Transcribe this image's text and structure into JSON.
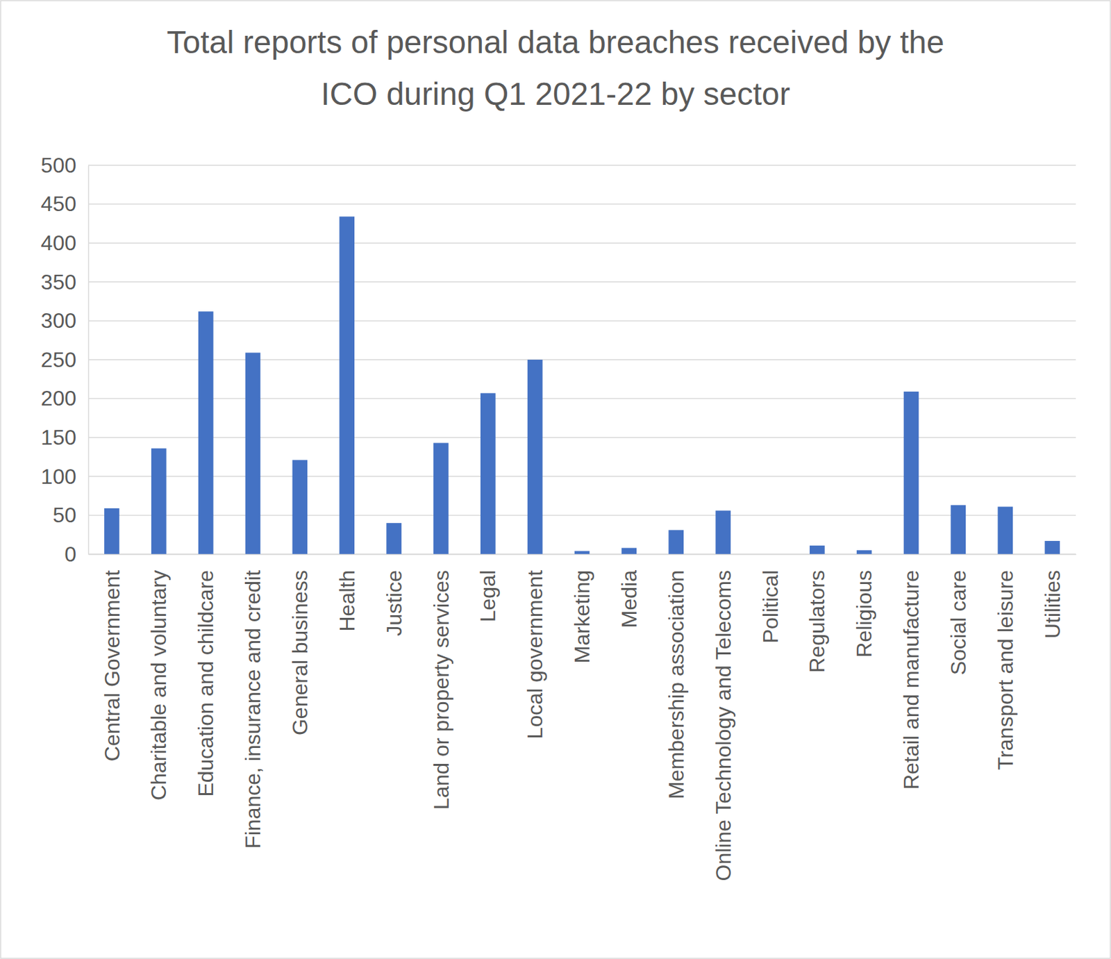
{
  "chart_data": {
    "type": "bar",
    "title": "Total reports of personal data breaches received by the ICO during Q1 2021-22 by sector",
    "categories": [
      "Central Government",
      "Charitable and voluntary",
      "Education and childcare",
      "Finance, insurance and credit",
      "General business",
      "Health",
      "Justice",
      "Land or property services",
      "Legal",
      "Local government",
      "Marketing",
      "Media",
      "Membership association",
      "Online Technology and Telecoms",
      "Political",
      "Regulators",
      "Religious",
      "Retail and manufacture",
      "Social care",
      "Transport and leisure",
      "Utilities"
    ],
    "values": [
      59,
      136,
      312,
      259,
      121,
      434,
      40,
      143,
      207,
      250,
      4,
      8,
      31,
      56,
      0,
      11,
      5,
      209,
      63,
      61,
      17
    ],
    "color": "#4472c4",
    "ylim": [
      0,
      500
    ],
    "yticks": [
      0,
      50,
      100,
      150,
      200,
      250,
      300,
      350,
      400,
      450,
      500
    ],
    "grid": true
  }
}
